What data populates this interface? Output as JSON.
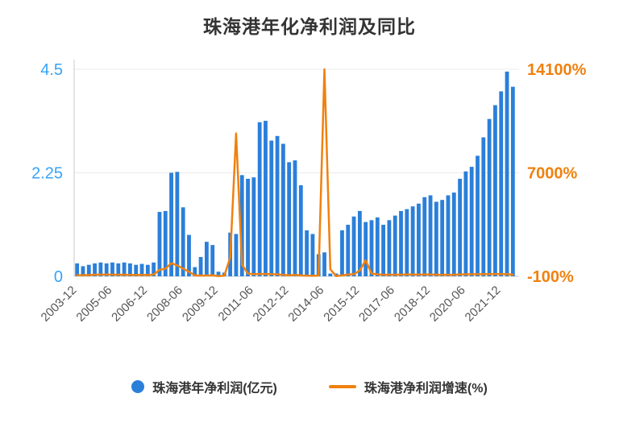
{
  "title": "珠海港年化净利润及同比",
  "colors": {
    "bar": "#2b7fd9",
    "line": "#f0810f",
    "left_axis_label": "#36a3f7",
    "right_axis_label": "#f0810f",
    "grid": "#ebebeb",
    "axis_line": "#cccccc",
    "x_label": "#555555",
    "title": "#333333"
  },
  "legend": {
    "items": [
      {
        "label": "珠海港年净利润(亿元)",
        "marker": "circle",
        "color": "#2b7fd9"
      },
      {
        "label": "珠海港净利润增速(%)",
        "marker": "line",
        "color": "#f0810f"
      }
    ]
  },
  "chart_data": {
    "type": "bar+line",
    "title": "珠海港年化净利润及同比",
    "categories": [
      "2003-12",
      "2004-03",
      "2004-06",
      "2004-09",
      "2004-12",
      "2005-03",
      "2005-06",
      "2005-09",
      "2005-12",
      "2006-03",
      "2006-06",
      "2006-09",
      "2006-12",
      "2007-03",
      "2007-06",
      "2007-09",
      "2007-12",
      "2008-03",
      "2008-06",
      "2008-09",
      "2008-12",
      "2009-03",
      "2009-06",
      "2009-09",
      "2009-12",
      "2010-03",
      "2010-06",
      "2010-09",
      "2010-12",
      "2011-03",
      "2011-06",
      "2011-09",
      "2011-12",
      "2012-03",
      "2012-06",
      "2012-09",
      "2012-12",
      "2013-03",
      "2013-06",
      "2013-09",
      "2013-12",
      "2014-03",
      "2014-06",
      "2014-09",
      "2014-12",
      "2015-03",
      "2015-06",
      "2015-09",
      "2015-12",
      "2016-03",
      "2016-06",
      "2016-09",
      "2016-12",
      "2017-03",
      "2017-06",
      "2017-09",
      "2017-12",
      "2018-03",
      "2018-06",
      "2018-09",
      "2018-12",
      "2019-03",
      "2019-06",
      "2019-09",
      "2019-12",
      "2020-03",
      "2020-06",
      "2020-09",
      "2020-12",
      "2021-03",
      "2021-06",
      "2021-09",
      "2021-12",
      "2022-03",
      "2022-06"
    ],
    "series": [
      {
        "name": "珠海港年净利润(亿元)",
        "type": "bar",
        "axis": "left",
        "values": [
          0.28,
          0.22,
          0.25,
          0.28,
          0.3,
          0.28,
          0.3,
          0.28,
          0.3,
          0.28,
          0.25,
          0.27,
          0.25,
          0.3,
          1.4,
          1.42,
          2.25,
          2.27,
          1.5,
          0.9,
          0.2,
          0.42,
          0.75,
          0.68,
          0.1,
          0.08,
          0.95,
          0.92,
          2.2,
          2.12,
          2.15,
          3.35,
          3.38,
          2.95,
          3.05,
          2.88,
          2.48,
          2.52,
          1.98,
          1.0,
          0.92,
          0.48,
          0.52,
          0.06,
          0.06,
          1.0,
          1.12,
          1.3,
          1.42,
          1.18,
          1.22,
          1.28,
          1.12,
          1.22,
          1.32,
          1.42,
          1.46,
          1.52,
          1.58,
          1.72,
          1.76,
          1.62,
          1.66,
          1.76,
          1.82,
          2.12,
          2.28,
          2.38,
          2.62,
          3.02,
          3.42,
          3.72,
          4.02,
          4.45,
          4.12
        ]
      },
      {
        "name": "珠海港净利润增速(%)",
        "type": "line",
        "axis": "right",
        "values": [
          -30,
          -20,
          -15,
          12,
          15,
          18,
          20,
          5,
          8,
          0,
          -8,
          -5,
          -12,
          15,
          350,
          420,
          800,
          650,
          430,
          210,
          -35,
          -50,
          -45,
          -28,
          -85,
          -60,
          1200,
          9700,
          700,
          90,
          45,
          58,
          60,
          42,
          38,
          -5,
          -26,
          -3,
          -33,
          -62,
          -64,
          -50,
          14100,
          380,
          -88,
          -40,
          25,
          45,
          300,
          1000,
          85,
          40,
          5,
          8,
          10,
          12,
          30,
          25,
          20,
          21,
          21,
          7,
          5,
          2,
          3,
          31,
          37,
          35,
          44,
          42,
          50,
          56,
          53,
          47,
          11
        ]
      }
    ],
    "left_axis": {
      "ticks": [
        0,
        2.25,
        4.5
      ],
      "tick_labels": [
        "0",
        "2.25",
        "4.5"
      ],
      "range": [
        0,
        4.5
      ]
    },
    "right_axis": {
      "ticks": [
        -100,
        7000,
        14100
      ],
      "tick_labels": [
        "-100%",
        "7000%",
        "14100%"
      ],
      "range": [
        -100,
        14100
      ]
    },
    "x_tick_labels": [
      "2003-12",
      "2005-06",
      "2006-12",
      "2008-06",
      "2009-12",
      "2011-06",
      "2012-12",
      "2014-06",
      "2015-12",
      "2017-06",
      "2018-12",
      "2020-06",
      "2021-12"
    ],
    "x_tick_indices": [
      0,
      6,
      12,
      18,
      24,
      30,
      36,
      42,
      48,
      54,
      60,
      66,
      72
    ],
    "grid": true,
    "legend_position": "bottom"
  }
}
